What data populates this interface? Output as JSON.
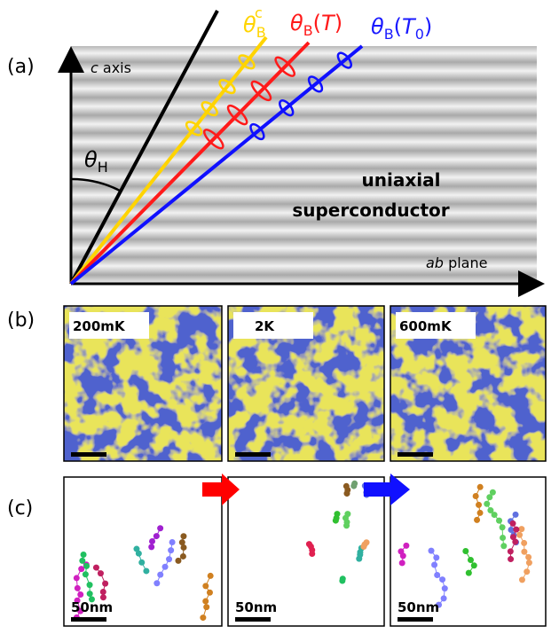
{
  "panel_a": {
    "label": "(a)",
    "c_axis": {
      "symbol": "c",
      "word": "axis"
    },
    "ab_plane": {
      "symbol": "ab",
      "word": "plane"
    },
    "theta_h": {
      "symbol": "θ",
      "sub": "H"
    },
    "theta_b_c": {
      "symbol": "θ",
      "sub": "B",
      "sup": "c"
    },
    "theta_b_t": {
      "symbol": "θ",
      "sub": "B",
      "open": "(",
      "arg": "T",
      "close": ")"
    },
    "theta_b_t0": {
      "symbol": "θ",
      "sub": "B",
      "open": "(",
      "arg": "T",
      "arg_sub": "0",
      "close": ")"
    },
    "material": [
      "uniaxial",
      "superconductor"
    ]
  },
  "panel_b": {
    "label": "(b)",
    "temperatures": [
      "200mK",
      "2K",
      "600mK"
    ]
  },
  "panel_c": {
    "label": "(c)",
    "scale_bars": [
      "50nm",
      "50nm",
      "50nm"
    ]
  }
}
